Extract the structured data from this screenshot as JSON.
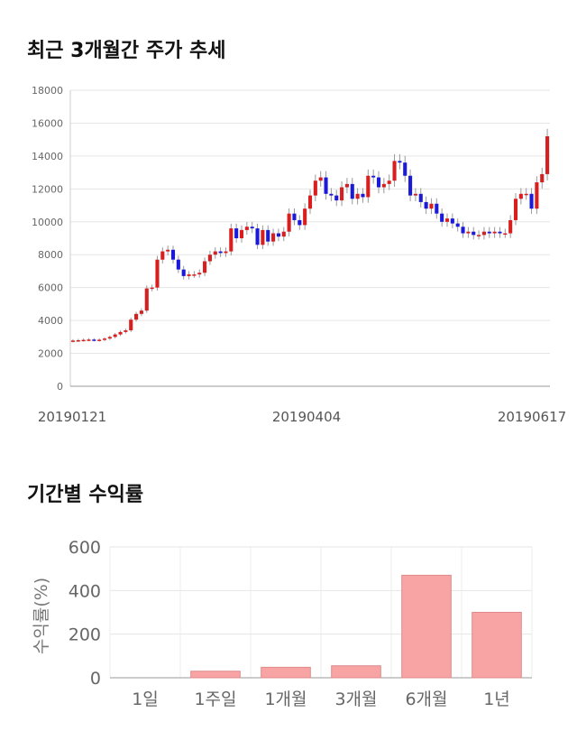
{
  "sections": {
    "price_trend_title": "최근 3개월간 주가 추세",
    "returns_title": "기간별 수익률"
  },
  "colors": {
    "up": "#d81e1e",
    "down": "#1a1ad8",
    "wick": "#999999",
    "bar": "#f8a4a4",
    "bar_stroke": "#e08a8a"
  },
  "chart_data": [
    {
      "type": "candlestick",
      "title": "최근 3개월간 주가 추세",
      "x_labels": [
        "20190121",
        "20190404",
        "20190617"
      ],
      "ylim": [
        0,
        18000
      ],
      "y_ticks": [
        0,
        2000,
        4000,
        6000,
        8000,
        10000,
        12000,
        14000,
        16000,
        18000
      ],
      "grid": true,
      "close": [
        2780,
        2800,
        2820,
        2840,
        2810,
        2830,
        2900,
        3000,
        3150,
        3300,
        3400,
        4050,
        4400,
        4600,
        5950,
        6000,
        7700,
        8200,
        8300,
        7700,
        7100,
        6700,
        6800,
        6800,
        6900,
        7600,
        8000,
        8200,
        8100,
        8200,
        9600,
        9000,
        9500,
        9700,
        9600,
        8600,
        9500,
        8800,
        9300,
        9100,
        9400,
        10500,
        10100,
        9800,
        10800,
        11600,
        12500,
        12700,
        11700,
        11600,
        11300,
        12100,
        12300,
        11400,
        11700,
        11500,
        12800,
        12700,
        12100,
        12300,
        12500,
        13700,
        13600,
        12800,
        11600,
        11700,
        11200,
        10800,
        11100,
        10500,
        10000,
        10200,
        9900,
        9700,
        9300,
        9400,
        9200,
        9200,
        9400,
        9300,
        9400,
        9300,
        9300,
        10100,
        11400,
        11700,
        11700,
        10800,
        12400,
        12900,
        15200
      ],
      "returns": null
    },
    {
      "type": "bar",
      "title": "기간별 수익률",
      "ylabel": "수익률(%)",
      "categories": [
        "1일",
        "1주일",
        "1개월",
        "3개월",
        "6개월",
        "1년"
      ],
      "values": [
        2,
        30,
        48,
        55,
        470,
        300
      ],
      "ylim": [
        0,
        600
      ],
      "y_ticks": [
        0,
        200,
        400,
        600
      ],
      "grid": true
    }
  ]
}
